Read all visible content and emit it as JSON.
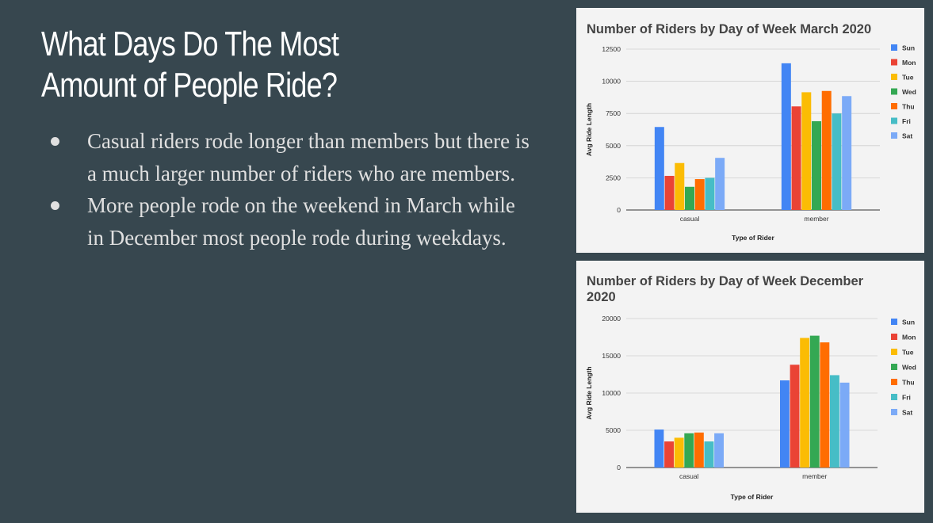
{
  "slide": {
    "title_lines": [
      "What Days Do The Most",
      "Amount of People Ride?"
    ],
    "bullets": [
      "Casual riders rode longer than members but there is a much larger number of riders who are members.",
      "More people rode on the weekend in March while in December most people rode during weekdays."
    ]
  },
  "chart_data": [
    {
      "type": "bar",
      "title": "Number of Riders by Day of Week March 2020",
      "xlabel": "Type of Rider",
      "ylabel": "Avg Ride Length",
      "categories": [
        "casual",
        "member"
      ],
      "ylim": [
        0,
        12500
      ],
      "yticks": [
        0,
        2500,
        5000,
        7500,
        10000,
        12500
      ],
      "grid": true,
      "legend_position": "right",
      "series": [
        {
          "name": "Sun",
          "color": "#4285f4",
          "values": [
            6450,
            11400
          ]
        },
        {
          "name": "Mon",
          "color": "#ea4335",
          "values": [
            2650,
            8050
          ]
        },
        {
          "name": "Tue",
          "color": "#fbbc04",
          "values": [
            3650,
            9150
          ]
        },
        {
          "name": "Wed",
          "color": "#34a853",
          "values": [
            1800,
            6900
          ]
        },
        {
          "name": "Thu",
          "color": "#ff6d01",
          "values": [
            2400,
            9250
          ]
        },
        {
          "name": "Fri",
          "color": "#46bdc6",
          "values": [
            2500,
            7500
          ]
        },
        {
          "name": "Sat",
          "color": "#7baaf7",
          "values": [
            4050,
            8850
          ]
        }
      ]
    },
    {
      "type": "bar",
      "title": "Number of Riders by Day of Week December 2020",
      "xlabel": "Type of Rider",
      "ylabel": "Avg Ride Length",
      "categories": [
        "casual",
        "member"
      ],
      "ylim": [
        0,
        20000
      ],
      "yticks": [
        0,
        5000,
        10000,
        15000,
        20000
      ],
      "grid": true,
      "legend_position": "right",
      "series": [
        {
          "name": "Sun",
          "color": "#4285f4",
          "values": [
            5100,
            11700
          ]
        },
        {
          "name": "Mon",
          "color": "#ea4335",
          "values": [
            3500,
            13800
          ]
        },
        {
          "name": "Tue",
          "color": "#fbbc04",
          "values": [
            4000,
            17400
          ]
        },
        {
          "name": "Wed",
          "color": "#34a853",
          "values": [
            4600,
            17700
          ]
        },
        {
          "name": "Thu",
          "color": "#ff6d01",
          "values": [
            4700,
            16800
          ]
        },
        {
          "name": "Fri",
          "color": "#46bdc6",
          "values": [
            3500,
            12400
          ]
        },
        {
          "name": "Sat",
          "color": "#7baaf7",
          "values": [
            4600,
            11400
          ]
        }
      ]
    }
  ]
}
